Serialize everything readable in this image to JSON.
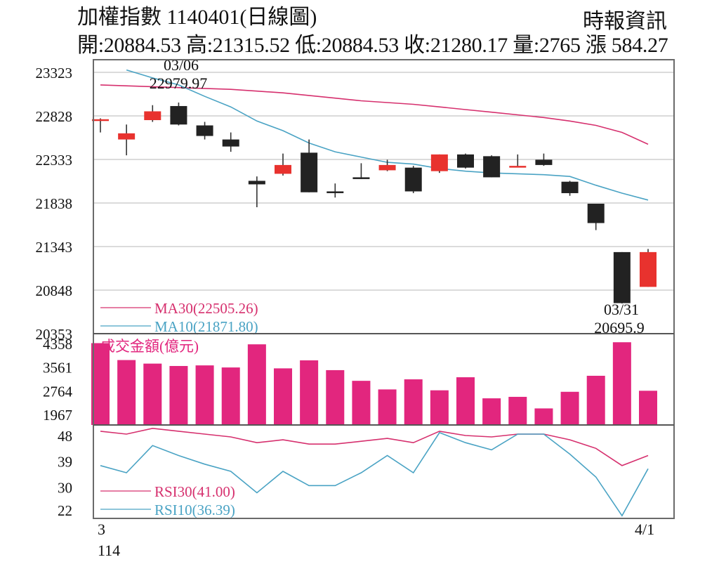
{
  "header": {
    "title": "加權指數 1140401(日線圖)",
    "source": "時報資訊",
    "ohlc": "開:20884.53 高:21315.52 低:20884.53 收:21280.17 量:2765 漲 584.27"
  },
  "chart_data": {
    "type": "candlestick",
    "x_axis": {
      "start_label": "3",
      "year_label": "114",
      "end_label": "4/1"
    },
    "price_panel": {
      "yticks": [
        23323,
        22828,
        22333,
        21838,
        21343,
        20848,
        20353
      ],
      "ylim": [
        20353,
        23323
      ],
      "grid": true,
      "candles": [
        {
          "open": 22770,
          "close": 22790,
          "high": 22800,
          "low": 22640
        },
        {
          "open": 22560,
          "close": 22630,
          "high": 22730,
          "low": 22380
        },
        {
          "open": 22780,
          "close": 22880,
          "high": 22950,
          "low": 22760
        },
        {
          "open": 22940,
          "close": 22730,
          "high": 22980,
          "low": 22720
        },
        {
          "open": 22720,
          "close": 22600,
          "high": 22760,
          "low": 22560
        },
        {
          "open": 22560,
          "close": 22480,
          "high": 22640,
          "low": 22420
        },
        {
          "open": 22090,
          "close": 22050,
          "high": 22140,
          "low": 21790
        },
        {
          "open": 22170,
          "close": 22270,
          "high": 22400,
          "low": 22150
        },
        {
          "open": 22410,
          "close": 21960,
          "high": 22560,
          "low": 21960
        },
        {
          "open": 21970,
          "close": 21960,
          "high": 22060,
          "low": 21900
        },
        {
          "open": 22130,
          "close": 22120,
          "high": 22290,
          "low": 22110
        },
        {
          "open": 22210,
          "close": 22270,
          "high": 22330,
          "low": 22200
        },
        {
          "open": 22240,
          "close": 21970,
          "high": 22260,
          "low": 21950
        },
        {
          "open": 22200,
          "close": 22390,
          "high": 22390,
          "low": 22180
        },
        {
          "open": 22390,
          "close": 22240,
          "high": 22400,
          "low": 22230
        },
        {
          "open": 22370,
          "close": 22130,
          "high": 22380,
          "low": 22130
        },
        {
          "open": 22260,
          "close": 22260,
          "high": 22390,
          "low": 22250
        },
        {
          "open": 22330,
          "close": 22270,
          "high": 22400,
          "low": 22260
        },
        {
          "open": 22080,
          "close": 21950,
          "high": 22090,
          "low": 21920
        },
        {
          "open": 21830,
          "close": 21610,
          "high": 21830,
          "low": 21530
        },
        {
          "open": 21280,
          "close": 20700,
          "high": 21280,
          "low": 20695.9
        },
        {
          "open": 20884.53,
          "close": 21280.17,
          "high": 21315.52,
          "low": 20884.53
        }
      ],
      "ma30": {
        "label": "MA30(22505.26)",
        "color": "#d6306e",
        "values": [
          23180,
          23170,
          23160,
          23150,
          23140,
          23130,
          23110,
          23090,
          23060,
          23030,
          23000,
          22980,
          22960,
          22930,
          22900,
          22870,
          22840,
          22810,
          22770,
          22720,
          22640,
          22505.26
        ]
      },
      "ma10": {
        "label": "MA10(21871.80)",
        "color": "#4aa3c4",
        "values": [
          null,
          23350,
          23260,
          23180,
          23050,
          22930,
          22770,
          22660,
          22520,
          22420,
          22360,
          22300,
          22280,
          22230,
          22200,
          22180,
          22170,
          22160,
          22140,
          22040,
          21950,
          21871.8
        ]
      },
      "annotations": [
        {
          "date": "03/06",
          "value": "22979.97"
        },
        {
          "date": "03/31",
          "value": "20695.9"
        }
      ]
    },
    "volume_panel": {
      "label": "成交金額(億元)",
      "yticks": [
        4358,
        3561,
        2764,
        1967
      ],
      "ylim": [
        1967,
        4358
      ],
      "color": "#e2267e",
      "values": [
        4370,
        3800,
        3680,
        3600,
        3620,
        3550,
        4330,
        3520,
        3790,
        3460,
        3100,
        2810,
        3150,
        2780,
        3220,
        2510,
        2560,
        2170,
        2730,
        3270,
        4400,
        2765
      ]
    },
    "rsi_panel": {
      "yticks": [
        48,
        39,
        30,
        22
      ],
      "ylim": [
        20,
        52
      ],
      "rsi30": {
        "label": "RSI30(41.00)",
        "color": "#d6306e",
        "values": [
          49.5,
          48.5,
          50.5,
          49.5,
          48.5,
          47.5,
          45.5,
          46.5,
          45,
          45,
          46,
          47,
          45.5,
          49.5,
          48,
          47.5,
          48.5,
          48.5,
          46.5,
          43.5,
          37.5,
          41.0
        ]
      },
      "rsi10": {
        "label": "RSI10(36.39)",
        "color": "#4aa3c4",
        "values": [
          37.5,
          35,
          44.5,
          41,
          38,
          35.5,
          28,
          35.5,
          30.5,
          30.5,
          35,
          41,
          35,
          49,
          45.5,
          43,
          48.5,
          48.5,
          41.5,
          33.5,
          20,
          36.39
        ]
      }
    },
    "colors": {
      "up": "#e8322e",
      "down": "#222222",
      "grid": "#cfcfcf",
      "frame": "#6a6a6a"
    }
  }
}
